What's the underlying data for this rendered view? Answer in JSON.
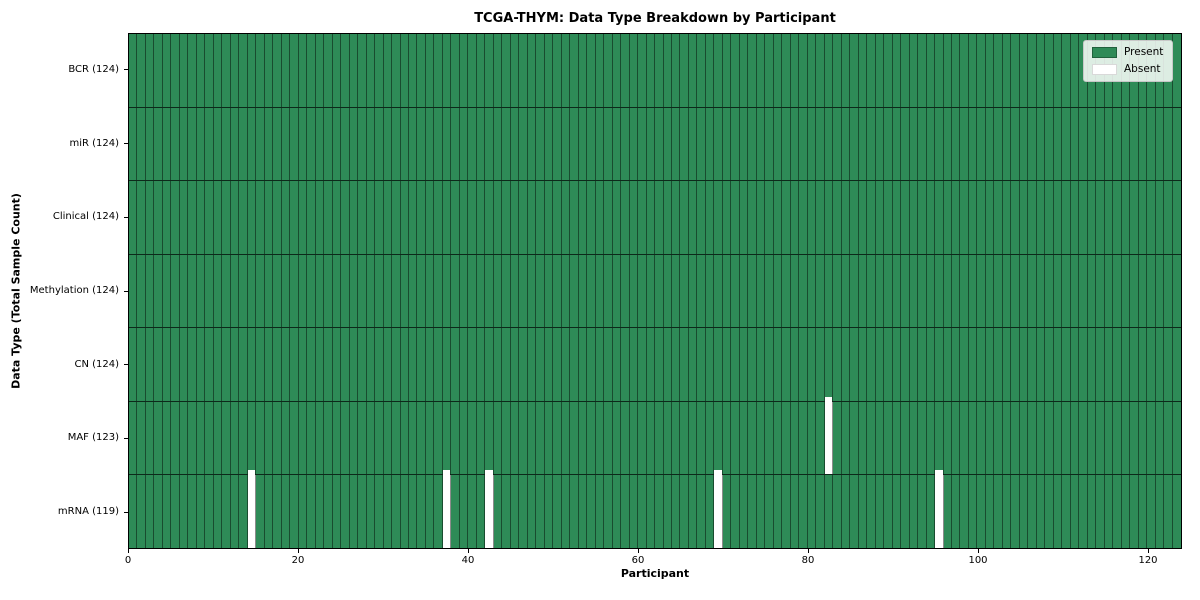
{
  "chart_data": {
    "type": "heatmap",
    "title": "TCGA-THYM: Data Type Breakdown by Participant",
    "xlabel": "Participant",
    "ylabel": "Data Type (Total Sample Count)",
    "xlim": [
      0,
      124
    ],
    "n_participants": 124,
    "x_ticks": [
      0,
      20,
      40,
      60,
      80,
      100,
      120
    ],
    "grid": true,
    "legend_position": "upper right",
    "rows": [
      {
        "label": "BCR (124)",
        "present_count": 124,
        "absent_participants": []
      },
      {
        "label": "miR (124)",
        "present_count": 124,
        "absent_participants": []
      },
      {
        "label": "Clinical (124)",
        "present_count": 124,
        "absent_participants": []
      },
      {
        "label": "Methylation (124)",
        "present_count": 124,
        "absent_participants": []
      },
      {
        "label": "CN (124)",
        "present_count": 124,
        "absent_participants": []
      },
      {
        "label": "MAF (123)",
        "present_count": 123,
        "absent_participants": [
          82
        ]
      },
      {
        "label": "mRNA (119)",
        "present_count": 119,
        "absent_participants": [
          14,
          37,
          42,
          69,
          95
        ]
      }
    ],
    "legend": [
      {
        "label": "Present",
        "color": "#2e8b57"
      },
      {
        "label": "Absent",
        "color": "#ffffff"
      }
    ],
    "colors": {
      "present": "#2e8b57",
      "absent": "#ffffff",
      "grid_line": "rgba(0,0,0,0.45)",
      "row_line": "rgba(0,0,0,0.7)",
      "spine": "#000000"
    }
  }
}
